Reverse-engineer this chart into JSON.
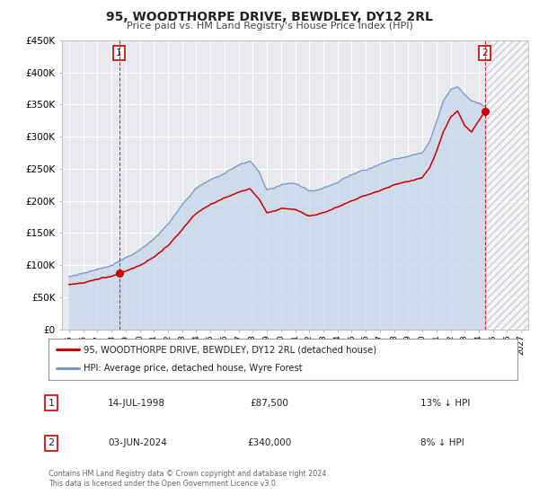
{
  "title": "95, WOODTHORPE DRIVE, BEWDLEY, DY12 2RL",
  "subtitle": "Price paid vs. HM Land Registry's House Price Index (HPI)",
  "background_color": "#ffffff",
  "plot_bg_color": "#e8eaf0",
  "grid_color": "#ffffff",
  "xlim": [
    1994.5,
    2027.5
  ],
  "ylim": [
    0,
    450000
  ],
  "yticks": [
    0,
    50000,
    100000,
    150000,
    200000,
    250000,
    300000,
    350000,
    400000,
    450000
  ],
  "ytick_labels": [
    "£0",
    "£50K",
    "£100K",
    "£150K",
    "£200K",
    "£250K",
    "£300K",
    "£350K",
    "£400K",
    "£450K"
  ],
  "xticks": [
    1995,
    1996,
    1997,
    1998,
    1999,
    2000,
    2001,
    2002,
    2003,
    2004,
    2005,
    2006,
    2007,
    2008,
    2009,
    2010,
    2011,
    2012,
    2013,
    2014,
    2015,
    2016,
    2017,
    2018,
    2019,
    2020,
    2021,
    2022,
    2023,
    2024,
    2025,
    2026,
    2027
  ],
  "property_color": "#cc0000",
  "hpi_color": "#7799cc",
  "hpi_fill_color": "#c5d5e8",
  "sale1_x": 1998.54,
  "sale1_y": 87500,
  "sale2_x": 2024.42,
  "sale2_y": 340000,
  "legend_property": "95, WOODTHORPE DRIVE, BEWDLEY, DY12 2RL (detached house)",
  "legend_hpi": "HPI: Average price, detached house, Wyre Forest",
  "table_row1": [
    "1",
    "14-JUL-1998",
    "£87,500",
    "13% ↓ HPI"
  ],
  "table_row2": [
    "2",
    "03-JUN-2024",
    "£340,000",
    "8% ↓ HPI"
  ],
  "footer_line1": "Contains HM Land Registry data © Crown copyright and database right 2024.",
  "footer_line2": "This data is licensed under the Open Government Licence v3.0."
}
